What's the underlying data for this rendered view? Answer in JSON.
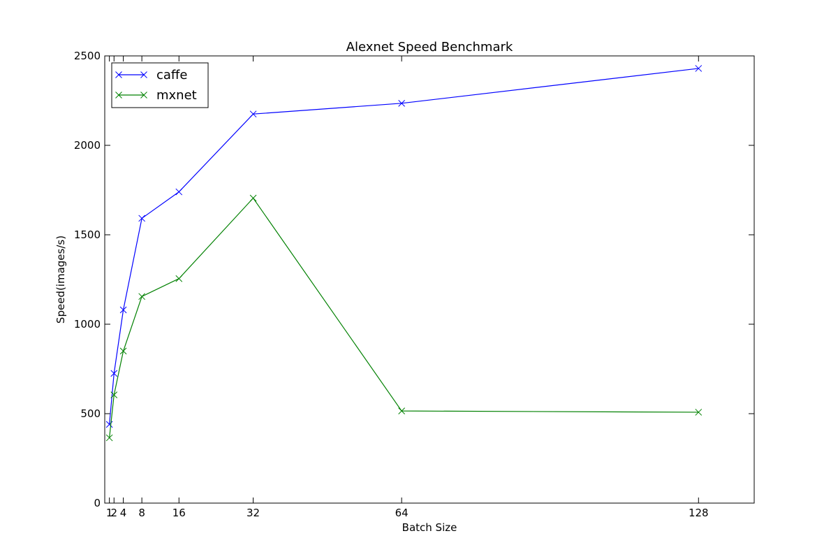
{
  "chart_data": {
    "type": "line",
    "title": "Alexnet Speed Benchmark",
    "xlabel": "Batch Size",
    "ylabel": "Speed(images/s)",
    "x": [
      1,
      2,
      4,
      8,
      16,
      32,
      64,
      128
    ],
    "xticks": [
      1,
      2,
      4,
      8,
      16,
      32,
      64,
      128
    ],
    "xtick_labels": [
      "1",
      "2",
      "4",
      "8",
      "16",
      "32",
      "64",
      "128"
    ],
    "yticks": [
      0,
      500,
      1000,
      1500,
      2000,
      2500
    ],
    "ytick_labels": [
      "0",
      "500",
      "1000",
      "1500",
      "2000",
      "2500"
    ],
    "xlim": [
      0,
      140
    ],
    "ylim": [
      0,
      2500
    ],
    "grid": false,
    "legend_position": "top-left",
    "series": [
      {
        "name": "caffe",
        "color": "#0000ff",
        "marker": "x",
        "values": [
          440,
          725,
          1080,
          1592,
          1740,
          2175,
          2235,
          2430
        ]
      },
      {
        "name": "mxnet",
        "color": "#008000",
        "marker": "x",
        "values": [
          365,
          605,
          850,
          1155,
          1255,
          1705,
          515,
          508
        ]
      }
    ]
  }
}
